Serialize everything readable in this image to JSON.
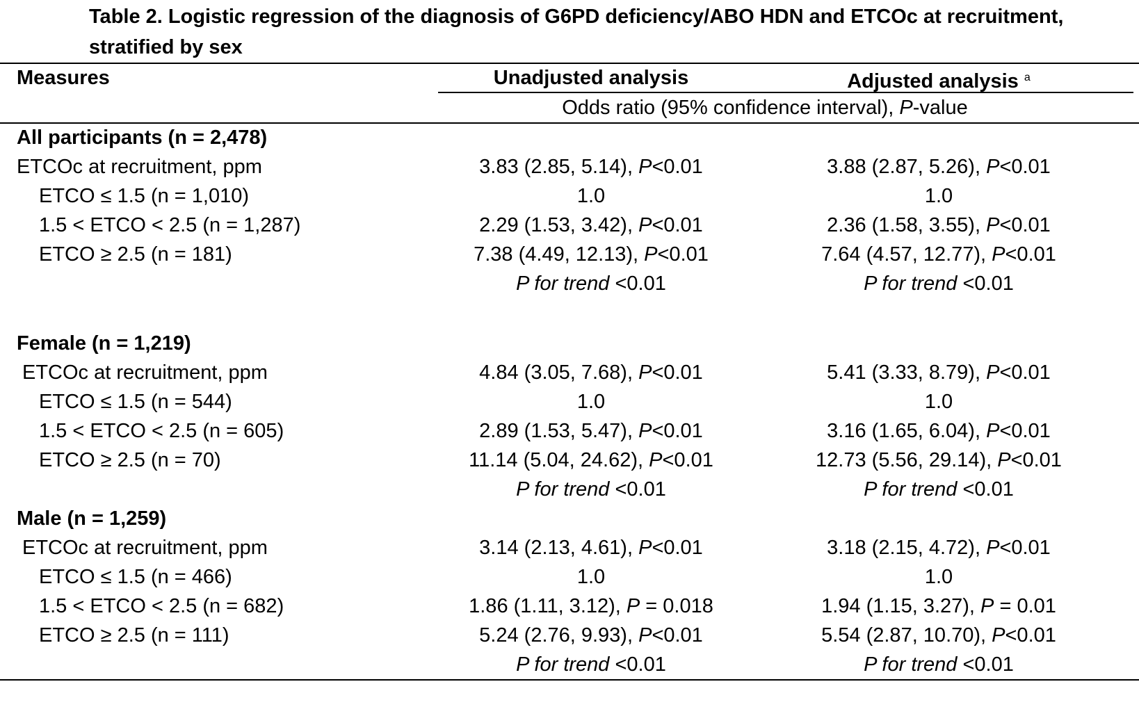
{
  "title": "Table 2. Logistic regression of the diagnosis of G6PD deficiency/ABO HDN and ETCOc at recruitment, stratified by sex",
  "header": {
    "measures": "Measures",
    "unadjusted": "Unadjusted analysis",
    "adjusted": "Adjusted analysis",
    "adjusted_sup": "a",
    "subheader_pre": "Odds ratio (95% confidence interval), ",
    "subheader_p": "P",
    "subheader_post": "-value"
  },
  "sections": [
    {
      "heading": "All participants (n = 2,478)",
      "etcoc": {
        "label": "ETCOc at recruitment, ppm",
        "unadj_est": "3.83 (2.85, 5.14), ",
        "unadj_p": "<0.01",
        "adj_est": "3.88 (2.87, 5.26), ",
        "adj_p": "<0.01"
      },
      "rows": [
        {
          "label": "ETCO ≤ 1.5 (n = 1,010)",
          "unadj": "1.0",
          "adj": "1.0"
        },
        {
          "label": "1.5 < ETCO < 2.5 (n = 1,287)",
          "unadj_est": "2.29 (1.53, 3.42), ",
          "unadj_p": "<0.01",
          "adj_est": "2.36 (1.58, 3.55), ",
          "adj_p": "<0.01"
        },
        {
          "label": "ETCO ≥ 2.5 (n = 181)",
          "unadj_est": "7.38 (4.49, 12.13), ",
          "unadj_p": "<0.01",
          "adj_est": "7.64 (4.57, 12.77), ",
          "adj_p": "<0.01"
        }
      ],
      "trend": {
        "label": "P for trend",
        "unadj": " <0.01",
        "adj": " <0.01"
      }
    },
    {
      "heading": "Female (n = 1,219)",
      "etcoc": {
        "label": "ETCOc at recruitment, ppm",
        "unadj_est": "4.84 (3.05, 7.68), ",
        "unadj_p": "<0.01",
        "adj_est": "5.41 (3.33, 8.79), ",
        "adj_p": "<0.01"
      },
      "rows": [
        {
          "label": "ETCO ≤ 1.5 (n = 544)",
          "unadj": "1.0",
          "adj": "1.0"
        },
        {
          "label": "1.5 < ETCO < 2.5 (n = 605)",
          "unadj_est": "2.89 (1.53, 5.47), ",
          "unadj_p": "<0.01",
          "adj_est": "3.16 (1.65, 6.04), ",
          "adj_p": "<0.01"
        },
        {
          "label": "ETCO ≥ 2.5 (n = 70)",
          "unadj_est": "11.14 (5.04, 24.62), ",
          "unadj_p": "<0.01",
          "adj_est": "12.73 (5.56, 29.14), ",
          "adj_p": "<0.01"
        }
      ],
      "trend": {
        "label": "P for trend",
        "unadj": " <0.01",
        "adj": " <0.01"
      }
    },
    {
      "heading": "Male (n = 1,259)",
      "etcoc": {
        "label": "ETCOc at recruitment, ppm",
        "unadj_est": "3.14 (2.13, 4.61), ",
        "unadj_p": "<0.01",
        "adj_est": "3.18 (2.15, 4.72), ",
        "adj_p": "<0.01"
      },
      "rows": [
        {
          "label": "ETCO ≤ 1.5 (n = 466)",
          "unadj": "1.0",
          "adj": "1.0"
        },
        {
          "label": "1.5 < ETCO < 2.5 (n = 682)",
          "unadj_est": "1.86 (1.11, 3.12), ",
          "unadj_p": " = 0.018",
          "adj_est": "1.94 (1.15, 3.27), ",
          "adj_p": " = 0.01"
        },
        {
          "label": "ETCO ≥ 2.5 (n = 111)",
          "unadj_est": "5.24 (2.76, 9.93), ",
          "unadj_p": "<0.01",
          "adj_est": "5.54 (2.87, 10.70), ",
          "adj_p": "<0.01"
        }
      ],
      "trend": {
        "label": "P for trend",
        "unadj": " <0.01",
        "adj": " <0.01"
      }
    }
  ],
  "p_symbol": "P"
}
